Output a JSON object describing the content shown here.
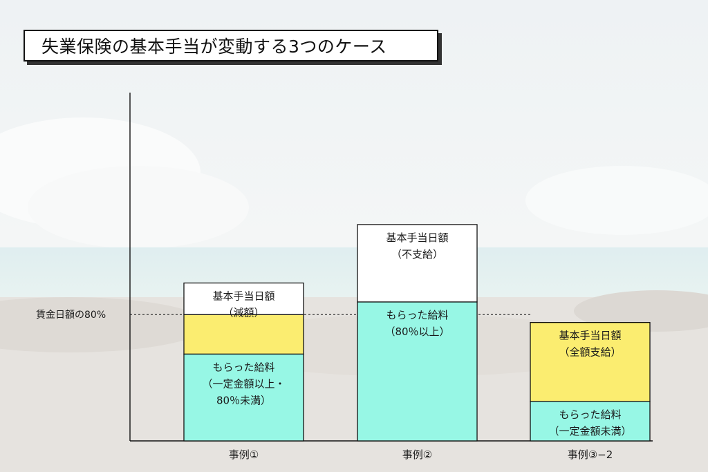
{
  "title": "失業保険の基本手当が変動する3つのケース",
  "chart_data": {
    "type": "bar",
    "stacked": true,
    "threshold": {
      "label": "賃金日額の80%",
      "value": 80
    },
    "categories": [
      "事例①",
      "事例②",
      "事例③−2"
    ],
    "bars": [
      {
        "category": "事例①",
        "segments": [
          {
            "from": 0,
            "to": 55,
            "fill": "#97f7e5",
            "lines": [
              "もらった給料",
              "（一定金額以上・",
              "80％未満）"
            ]
          },
          {
            "from": 55,
            "to": 80,
            "fill": "#fbed70",
            "lines": []
          },
          {
            "from": 80,
            "to": 100,
            "fill": "#ffffff",
            "lines": [
              "基本手当日額",
              "（減額）"
            ]
          }
        ]
      },
      {
        "category": "事例②",
        "segments": [
          {
            "from": 0,
            "to": 88,
            "fill": "#97f7e5",
            "lines": [
              "もらった給料",
              "（80％以上）"
            ]
          },
          {
            "from": 88,
            "to": 137,
            "fill": "#ffffff",
            "lines": [
              "基本手当日額",
              "（不支給）"
            ]
          }
        ]
      },
      {
        "category": "事例③−2",
        "segments": [
          {
            "from": 0,
            "to": 25,
            "fill": "#97f7e5",
            "lines": [
              "もらった給料",
              "（一定金額未満）"
            ]
          },
          {
            "from": 25,
            "to": 75,
            "fill": "#fbed70",
            "lines": [
              "基本手当日額",
              "（全額支給）"
            ]
          }
        ]
      }
    ]
  }
}
